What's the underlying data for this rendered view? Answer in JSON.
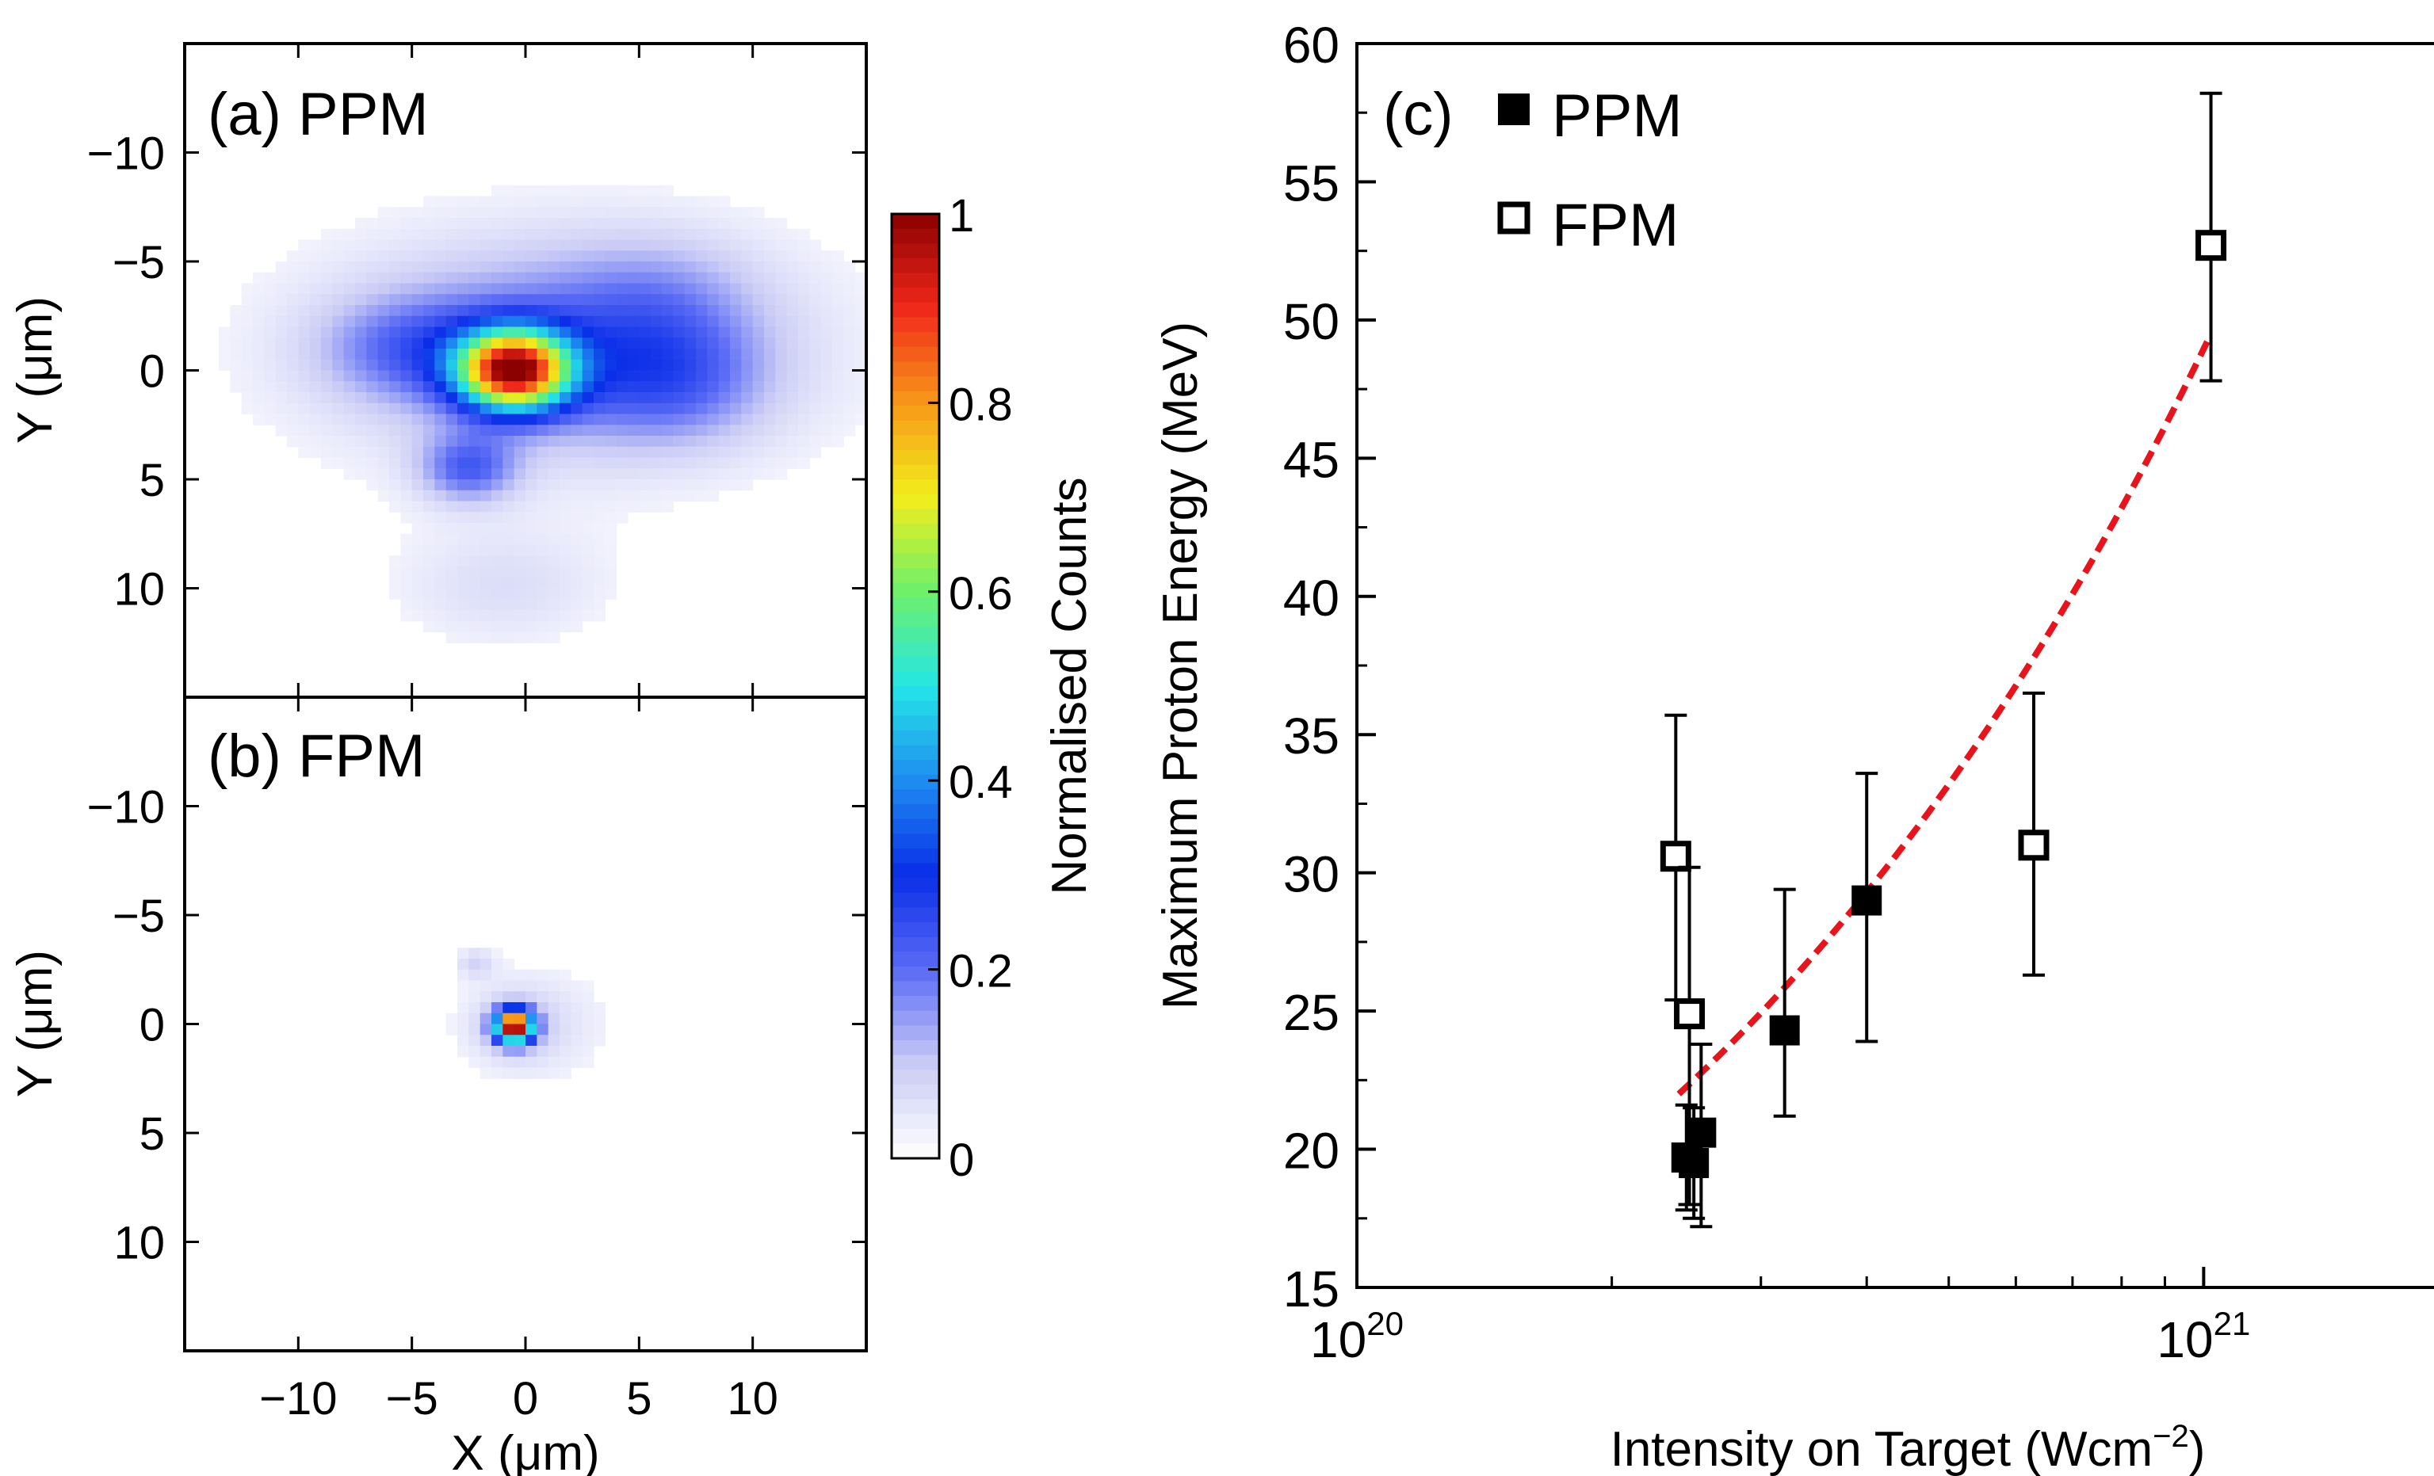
{
  "colors": {
    "axis": "#000000",
    "fit_line": "#e8141c",
    "colormap": [
      "#ffffff",
      "#c9cbf5",
      "#5a6bf5",
      "#0a2ee8",
      "#1e8cf0",
      "#24e6e6",
      "#6ef06a",
      "#f2ee1c",
      "#f79818",
      "#f0281a",
      "#8b0000"
    ]
  },
  "chart_data": [
    {
      "id": "a",
      "type": "heatmap",
      "panel_label": "(a) PPM",
      "ylabel": "Y (μm)",
      "xlim": [
        -15,
        15
      ],
      "ylim": [
        -15,
        15
      ],
      "y_inverted": true,
      "yticks": [
        "−10",
        "−5",
        "0",
        "5",
        "10"
      ],
      "ytick_values": [
        -10,
        -5,
        0,
        5,
        10
      ],
      "xtick_values": [
        -10,
        -5,
        0,
        5,
        10
      ],
      "blobs": [
        {
          "x": 1.5,
          "y": -1,
          "sx": 9,
          "sy": 4.5,
          "amp": 0.08
        },
        {
          "x": 1.5,
          "y": -1,
          "sx": 5.5,
          "sy": 2.8,
          "amp": 0.13
        },
        {
          "x": -5,
          "y": -1,
          "sx": 2.8,
          "sy": 1.6,
          "amp": 0.12
        },
        {
          "x": 6.5,
          "y": 0.5,
          "sx": 2.8,
          "sy": 2,
          "amp": 0.12
        },
        {
          "x": -2.5,
          "y": 4.5,
          "sx": 1.5,
          "sy": 1.1,
          "amp": 0.18
        },
        {
          "x": -1,
          "y": 10,
          "sx": 3.5,
          "sy": 2,
          "amp": 0.06
        },
        {
          "x": 6,
          "y": -3.5,
          "sx": 3,
          "sy": 2,
          "amp": 0.06
        },
        {
          "x": -0.5,
          "y": 0,
          "sx": 1.7,
          "sy": 1.25,
          "amp": 0.85
        }
      ]
    },
    {
      "id": "b",
      "type": "heatmap",
      "panel_label": "(b) FPM",
      "ylabel": "Y (μm)",
      "xlabel": "X (μm)",
      "xlim": [
        -15,
        15
      ],
      "ylim": [
        -15,
        15
      ],
      "y_inverted": true,
      "yticks": [
        "−10",
        "−5",
        "0",
        "5",
        "10"
      ],
      "ytick_values": [
        -10,
        -5,
        0,
        5,
        10
      ],
      "xticks": [
        "−10",
        "−5",
        "0",
        "5",
        "10"
      ],
      "xtick_values": [
        -10,
        -5,
        0,
        5,
        10
      ],
      "blobs": [
        {
          "x": 0.3,
          "y": 0,
          "sx": 2.5,
          "sy": 2,
          "amp": 0.06
        },
        {
          "x": -2.2,
          "y": -2.8,
          "sx": 0.6,
          "sy": 0.5,
          "amp": 0.07
        },
        {
          "x": -0.5,
          "y": 0.1,
          "sx": 0.55,
          "sy": 0.5,
          "amp": 0.95
        },
        {
          "x": -0.5,
          "y": 0.1,
          "sx": 1.1,
          "sy": 0.95,
          "amp": 0.08
        }
      ]
    },
    {
      "id": "colorbar",
      "type": "colorbar",
      "label": "Normalised Counts",
      "range": [
        0,
        1
      ],
      "ticks": [
        "1",
        "0.8",
        "0.6",
        "0.4",
        "0.2",
        "0"
      ],
      "tick_values": [
        1,
        0.8,
        0.6,
        0.4,
        0.2,
        0
      ]
    },
    {
      "id": "c",
      "type": "scatter",
      "panel_label": "(c)",
      "xscale": "log",
      "xlim": [
        1e+20,
        2e+21
      ],
      "ylim": [
        15,
        60
      ],
      "xlabel": "Intensity on Target (Wcm",
      "xlabel_sup": "−2",
      "xlabel_end": ")",
      "ylabel": "Maximum Proton Energy (MeV)",
      "yticks": [
        "15",
        "20",
        "25",
        "30",
        "35",
        "40",
        "45",
        "50",
        "55",
        "60"
      ],
      "ytick_values": [
        15,
        20,
        25,
        30,
        35,
        40,
        45,
        50,
        55,
        60
      ],
      "xticks_base": [
        "10",
        "10"
      ],
      "xticks_exp": [
        "20",
        "21"
      ],
      "xtick_values": [
        1e+20,
        1e+21
      ],
      "legend": {
        "position": "top-left",
        "entries": [
          "PPM",
          "FPM"
        ]
      },
      "series": [
        {
          "name": "PPM",
          "marker": "filled-square",
          "points": [
            {
              "x": 2.45e+20,
              "y": 19.7,
              "yerr_low": 17.8,
              "yerr_high": 21.6
            },
            {
              "x": 2.5e+20,
              "y": 19.5,
              "yerr_low": 17.5,
              "yerr_high": 21.5
            },
            {
              "x": 2.55e+20,
              "y": 20.6,
              "yerr_low": 17.2,
              "yerr_high": 23.8
            },
            {
              "x": 3.2e+20,
              "y": 24.3,
              "yerr_low": 21.2,
              "yerr_high": 29.4
            },
            {
              "x": 4e+20,
              "y": 29.0,
              "yerr_low": 23.9,
              "yerr_high": 33.6
            }
          ]
        },
        {
          "name": "FPM",
          "marker": "open-square",
          "points": [
            {
              "x": 2.38e+20,
              "y": 30.6,
              "yerr_low": 25.4,
              "yerr_high": 35.7
            },
            {
              "x": 2.47e+20,
              "y": 24.9,
              "yerr_low": 18.0,
              "yerr_high": 30.2
            },
            {
              "x": 6.3e+20,
              "y": 31.0,
              "yerr_low": 26.3,
              "yerr_high": 36.5
            },
            {
              "x": 1.02e+21,
              "y": 52.7,
              "yerr_low": 47.8,
              "yerr_high": 58.2
            }
          ]
        },
        {
          "name": "fit",
          "style": "dashed",
          "x_start": 2.4e+20,
          "x_end": 1.02e+21,
          "y_start": 22.0,
          "y_end": 49.5
        }
      ]
    }
  ]
}
